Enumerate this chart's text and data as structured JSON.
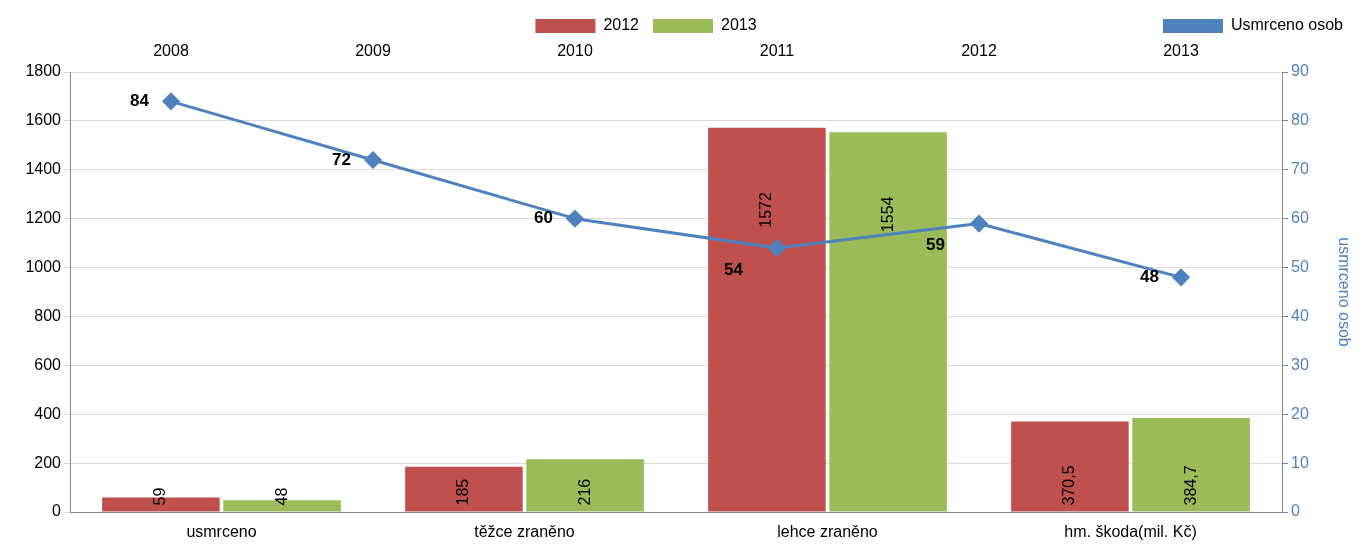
{
  "chart_data": [
    {
      "type": "bar",
      "categories": [
        "usmrceno",
        "těžce zraněno",
        "lehce zraněno",
        "hm. škoda(mil. Kč)"
      ],
      "series": [
        {
          "name": "2012",
          "color": "#c0504d",
          "values": [
            59,
            185,
            1572,
            370.5
          ],
          "value_labels": [
            "59",
            "185",
            "1572",
            "370,5"
          ]
        },
        {
          "name": "2013",
          "color": "#9bbb59",
          "values": [
            48,
            216,
            1554,
            384.7
          ],
          "value_labels": [
            "48",
            "216",
            "1554",
            "384,7"
          ]
        }
      ],
      "ylim": [
        0,
        1800
      ],
      "yticks": [
        0,
        200,
        400,
        600,
        800,
        1000,
        1200,
        1400,
        1600,
        1800
      ],
      "grid": "y",
      "legend": "top"
    },
    {
      "type": "line",
      "categories": [
        "2008",
        "2009",
        "2010",
        "2011",
        "2012",
        "2013"
      ],
      "series": [
        {
          "name": "Usmrceno osob",
          "axis": "y2",
          "color": "#4f81bd",
          "values": [
            84,
            72,
            60,
            54,
            59,
            48
          ],
          "value_labels": [
            "84",
            "72",
            "60",
            "54",
            "59",
            "48"
          ]
        }
      ],
      "y2lim": [
        0,
        90
      ],
      "y2ticks": [
        0,
        10,
        20,
        30,
        40,
        50,
        60,
        70,
        80,
        90
      ],
      "y2label": "usmrceno osob",
      "legend": "top",
      "marker": "diamond"
    }
  ]
}
